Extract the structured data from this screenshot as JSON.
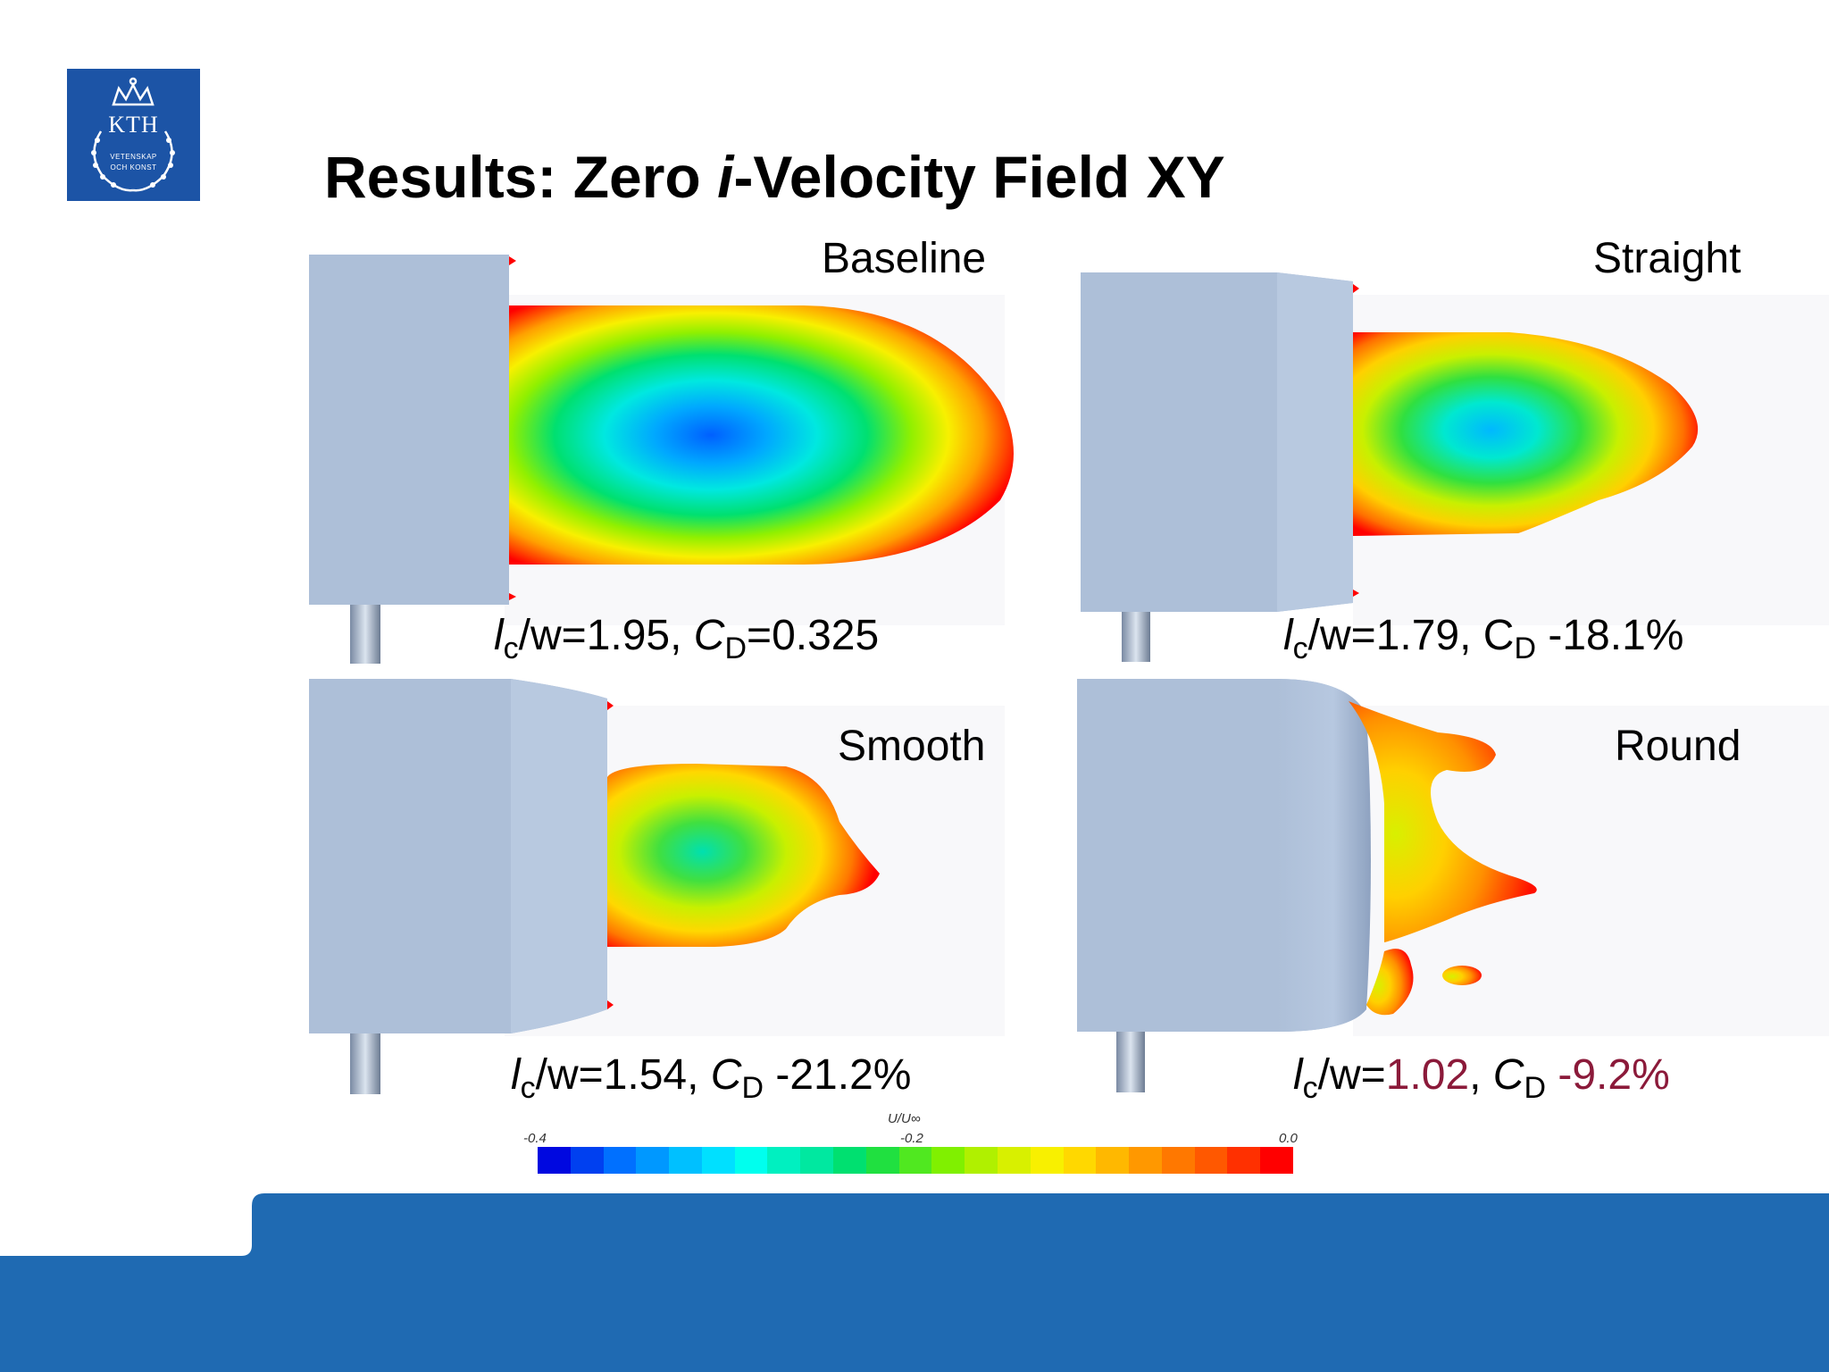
{
  "slide": {
    "title_pre": "Results: Zero ",
    "title_italic": "i",
    "title_post": "-Velocity Field XY"
  },
  "logo": {
    "text": "KTH",
    "subtitle_line1": "VETENSKAP",
    "subtitle_line2": "OCH KONST",
    "background": "#1c54a6"
  },
  "panels": [
    {
      "label": "Baseline",
      "metric_l": "l",
      "metric_c": "c",
      "metric_eq": "/w=",
      "metric_val": "1.95",
      "metric_sep": ", ",
      "metric_C": "C",
      "metric_D": "D",
      "metric_rest": "=0.325"
    },
    {
      "label": "Straight",
      "metric_l": "l",
      "metric_c": "c",
      "metric_eq": "/w=",
      "metric_val": "1.79",
      "metric_sep": ", C",
      "metric_D": "D",
      "metric_rest": " -18.1%"
    },
    {
      "label": "Smooth",
      "metric_l": "l",
      "metric_c": "c",
      "metric_eq": "/w=",
      "metric_val": "1.54",
      "metric_sep": ", ",
      "metric_C": "C",
      "metric_D": "D",
      "metric_rest": " -21.2%"
    },
    {
      "label": "Round",
      "metric_l": "l",
      "metric_c": "c",
      "metric_eq": "/w=",
      "metric_val": "1.02",
      "metric_sep": ", ",
      "metric_C": "C",
      "metric_D": "D",
      "metric_rest": " -9.2%"
    }
  ],
  "colorbar": {
    "title": "U/U∞",
    "ticks": [
      "-0.4",
      "-0.2",
      "0.0"
    ],
    "colors": [
      "#0008e0",
      "#0040f0",
      "#0070ff",
      "#0098ff",
      "#00c0ff",
      "#00e0ff",
      "#00ffee",
      "#00f0c0",
      "#00e8a0",
      "#00e070",
      "#20e040",
      "#50e820",
      "#80f000",
      "#b0f000",
      "#d8f000",
      "#f8f000",
      "#ffd800",
      "#ffb800",
      "#ff9800",
      "#ff7800",
      "#ff5800",
      "#ff3000",
      "#ff0000"
    ]
  },
  "colors": {
    "body": "#adbfd8",
    "footer": "#1f6ab2",
    "highlight": "#8b1a3a"
  }
}
